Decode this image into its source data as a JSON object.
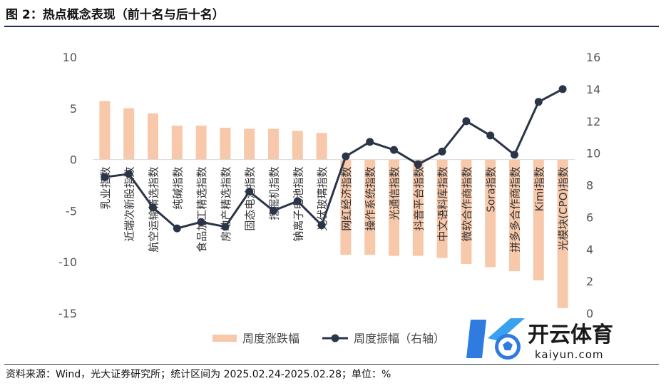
{
  "figure": {
    "title": "图 2：热点概念表现（前十名与后十名）",
    "source": "资料来源：Wind，光大证券研究所；统计区间为 2025.02.24-2025.02.28；单位：%"
  },
  "watermark": {
    "brand": "开云体育",
    "domain": "kaiyun.com"
  },
  "colors": {
    "bar": "#f7c8aa",
    "line": "#2b3548",
    "axis_text": "#555555"
  },
  "chart_data": {
    "type": "bar",
    "categories": [
      "乳业指数",
      "近端次新股指数",
      "航空运输精选指数",
      "纯碱指数",
      "食品加工精选指数",
      "房地产精选指数",
      "固态电池指数",
      "挖掘机指数",
      "钠离子电池指数",
      "光伏玻璃指数",
      "网红经济指数",
      "操作系统指数",
      "光通信指数",
      "抖音平台指数",
      "中文语料库指数",
      "微软合作商指数",
      "Sora指数",
      "拼多多合作商指数",
      "Kimi指数",
      "光模块(CPO)指数"
    ],
    "series": [
      {
        "name": "周度涨跌幅",
        "type": "bar",
        "axis": "left",
        "values": [
          5.7,
          5.0,
          4.5,
          3.3,
          3.3,
          3.1,
          3.0,
          3.0,
          2.8,
          2.6,
          -9.3,
          -9.3,
          -9.4,
          -9.4,
          -9.6,
          -10.2,
          -10.5,
          -10.9,
          -11.8,
          -14.5
        ]
      },
      {
        "name": "周度振幅（右轴）",
        "type": "line",
        "axis": "right",
        "values": [
          8.5,
          8.7,
          6.6,
          5.3,
          5.7,
          5.4,
          7.6,
          6.4,
          7.0,
          5.5,
          9.8,
          10.7,
          10.2,
          9.3,
          10.1,
          12.0,
          11.1,
          9.9,
          13.2,
          14.0
        ]
      }
    ],
    "y_left": {
      "ylim": [
        -15,
        10
      ],
      "ticks": [
        10,
        5,
        0,
        -5,
        -10,
        -15
      ]
    },
    "y_right": {
      "ylim": [
        0,
        16
      ],
      "ticks": [
        16,
        14,
        12,
        10,
        8,
        6,
        4,
        2,
        0
      ]
    },
    "legend": {
      "position": "bottom",
      "items": [
        "周度涨跌幅",
        "周度振幅（右轴）"
      ]
    },
    "grid": false
  }
}
